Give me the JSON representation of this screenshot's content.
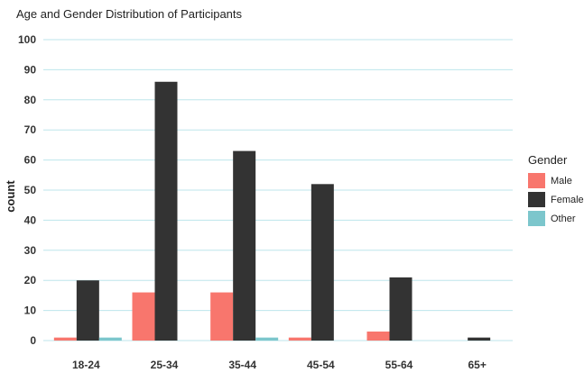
{
  "chart_data": {
    "type": "bar",
    "title": "Age and Gender Distribution of Participants",
    "xlabel": "",
    "ylabel": "count",
    "categories": [
      "18-24",
      "25-34",
      "35-44",
      "45-54",
      "55-64",
      "65+"
    ],
    "series": [
      {
        "name": "Male",
        "values": [
          1,
          16,
          16,
          1,
          3,
          0
        ],
        "color": "#F8766D"
      },
      {
        "name": "Female",
        "values": [
          20,
          86,
          63,
          52,
          21,
          1
        ],
        "color": "#333333"
      },
      {
        "name": "Other",
        "values": [
          1,
          0,
          1,
          0,
          0,
          0
        ],
        "color": "#7CC6CC"
      }
    ],
    "ylim": [
      0,
      100
    ],
    "yticks": [
      0,
      10,
      20,
      30,
      40,
      50,
      60,
      70,
      80,
      90,
      100
    ],
    "grid": true,
    "grid_color": "#BDE6EB",
    "legend": {
      "title": "Gender",
      "placement": "right"
    }
  }
}
